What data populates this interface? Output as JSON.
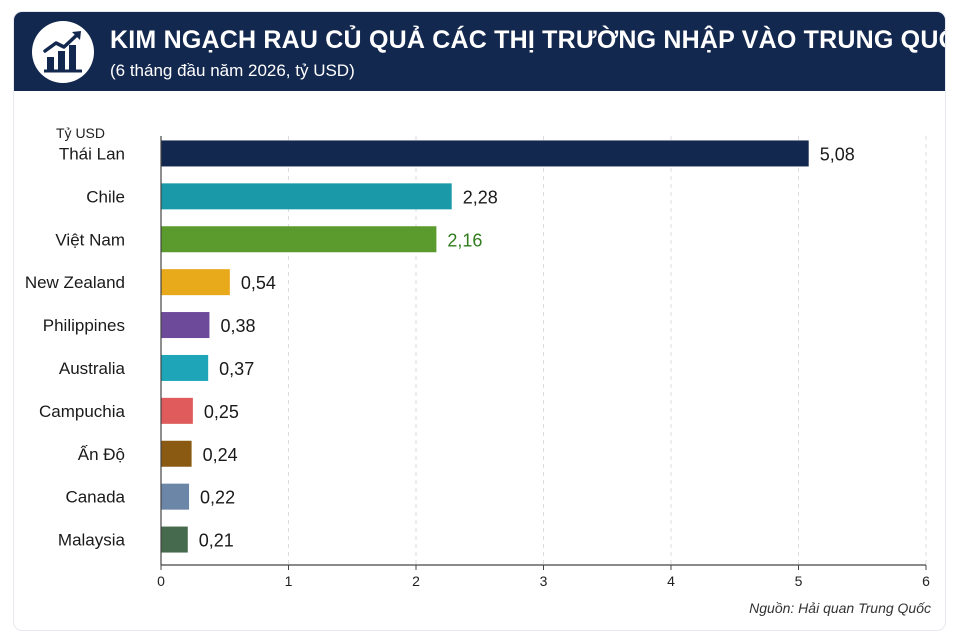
{
  "header": {
    "title": "KIM NGẠCH RAU CỦ QUẢ CÁC THỊ TRƯỜNG NHẬP VÀO TRUNG QUỐC",
    "subtitle": "(6 tháng đầu năm 2026, tỷ USD)",
    "icon": "bar-chart-trend-icon"
  },
  "footer": {
    "source": "Nguồn: Hải quan Trung Quốc"
  },
  "chart_data": {
    "type": "bar",
    "orientation": "horizontal",
    "title": "KIM NGẠCH RAU CỦ QUẢ CÁC THỊ TRƯỜNG NHẬP VÀO TRUNG QUỐC",
    "subtitle": "(6 tháng đầu năm 2026, tỷ USD)",
    "unit_label": "Tỷ USD",
    "categories": [
      "Thái Lan",
      "Chile",
      "Việt Nam",
      "New Zealand",
      "Philippines",
      "Australia",
      "Campuchia",
      "Ấn Độ",
      "Canada",
      "Malaysia"
    ],
    "values": [
      5.08,
      2.28,
      2.16,
      0.54,
      0.38,
      0.37,
      0.25,
      0.24,
      0.22,
      0.21
    ],
    "value_labels": [
      "5,08",
      "2,28",
      "2,16",
      "0,54",
      "0,38",
      "0,37",
      "0,25",
      "0,24",
      "0,22",
      "0,21"
    ],
    "colors": [
      "#13284f",
      "#1a9aa8",
      "#5b9a2c",
      "#e8aa1a",
      "#6e4a9a",
      "#1ea6b8",
      "#e05b5b",
      "#8a5a12",
      "#6c86a8",
      "#456a4e"
    ],
    "highlight_label_color": "#2f7d1e",
    "label_color": "#1a1a1a",
    "xlim": [
      0,
      6
    ],
    "xticks": [
      0,
      1,
      2,
      3,
      4,
      5,
      6
    ],
    "grid": true,
    "legend": "none"
  }
}
